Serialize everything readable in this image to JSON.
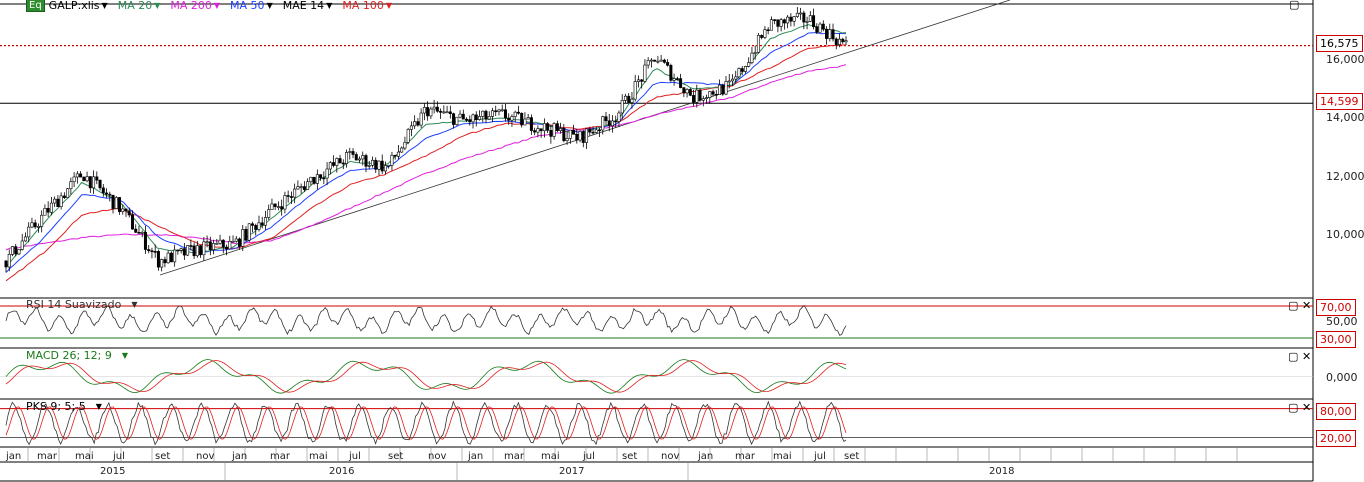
{
  "legend": {
    "eq": "Eq",
    "symbol": "GALP:xlis",
    "ma20": "MA 20",
    "ma200": "MA 200",
    "ma50": "MA 50",
    "mae14": "MAE 14",
    "ma100": "MA 100"
  },
  "indicators": {
    "rsi": "RSI 14 Suavizado",
    "macd": "MACD 26; 12; 9",
    "pks": "PKS 9; 5; 5"
  },
  "price_axis": {
    "ticks": [
      "16,000",
      "14,000",
      "12,000",
      "10,000"
    ],
    "current_price": "16,575",
    "support_level": "14,599"
  },
  "rsi_axis": {
    "upper": "70,00",
    "mid": "50,00",
    "lower": "30,00"
  },
  "macd_axis": {
    "zero": "0,000"
  },
  "pks_axis": {
    "upper": "80,00",
    "lower": "20,00"
  },
  "time_axis": {
    "months": [
      "jan",
      "mar",
      "mai",
      "jul",
      "set",
      "nov",
      "jan",
      "mar",
      "mai",
      "jul",
      "set",
      "nov",
      "jan",
      "mar",
      "mai",
      "jul",
      "set",
      "nov",
      "jan",
      "mar",
      "mai",
      "jul",
      "set"
    ],
    "years": [
      "2015",
      "2016",
      "2017",
      "2018"
    ]
  },
  "colors": {
    "ma20": "#2e8b57",
    "ma50": "#1e40ff",
    "ma100": "#e02020",
    "ma200": "#e020e0",
    "rsi": "#333333",
    "macd_line": "#1a7a1a",
    "macd_signal": "#e02020",
    "pks_k": "#333333",
    "pks_d": "#e02020",
    "current_price_line": "#d00000",
    "level_line": "#000000",
    "trendline": "#333333"
  },
  "chart_data": {
    "type": "line",
    "title": "GALP:xlis",
    "x": [
      "2015-01",
      "2015-03",
      "2015-05",
      "2015-07",
      "2015-09",
      "2015-11",
      "2016-01",
      "2016-03",
      "2016-05",
      "2016-07",
      "2016-09",
      "2016-11",
      "2017-01",
      "2017-03",
      "2017-05",
      "2017-07",
      "2017-09",
      "2017-11",
      "2018-01",
      "2018-03",
      "2018-05",
      "2018-07",
      "2018-08"
    ],
    "series": [
      {
        "name": "GALP:xlis",
        "values": [
          9.2,
          10.8,
          12.2,
          11.0,
          9.2,
          9.6,
          9.8,
          11.0,
          12.0,
          12.8,
          12.4,
          14.4,
          14.0,
          14.2,
          13.8,
          13.4,
          14.2,
          16.2,
          14.8,
          15.2,
          17.3,
          17.5,
          16.575
        ]
      },
      {
        "name": "MA 20",
        "values": [
          9.0,
          10.5,
          11.9,
          11.2,
          9.6,
          9.5,
          9.7,
          10.7,
          11.8,
          12.6,
          12.5,
          13.9,
          14.0,
          14.1,
          13.9,
          13.5,
          14.0,
          15.8,
          15.1,
          15.2,
          16.8,
          17.3,
          17.0
        ]
      },
      {
        "name": "MA 50",
        "values": [
          8.8,
          10.0,
          11.5,
          11.3,
          10.0,
          9.5,
          9.6,
          10.4,
          11.5,
          12.3,
          12.4,
          13.4,
          13.9,
          14.0,
          13.9,
          13.6,
          13.9,
          15.3,
          15.3,
          15.2,
          16.3,
          17.0,
          17.0
        ]
      },
      {
        "name": "MA 100",
        "values": [
          8.5,
          9.5,
          10.8,
          11.0,
          10.4,
          9.8,
          9.6,
          10.0,
          11.0,
          11.8,
          12.2,
          12.8,
          13.5,
          13.9,
          13.9,
          13.7,
          13.9,
          14.8,
          15.0,
          15.2,
          15.8,
          16.5,
          16.6
        ]
      },
      {
        "name": "MA 200",
        "values": [
          9.6,
          9.8,
          10.0,
          10.1,
          10.1,
          10.0,
          9.8,
          9.9,
          10.4,
          11.0,
          11.6,
          12.2,
          12.7,
          13.1,
          13.5,
          13.7,
          13.8,
          14.2,
          14.5,
          14.8,
          15.3,
          15.7,
          15.9
        ]
      }
    ],
    "ylim": [
      8,
      18
    ],
    "y_ticks": [
      10,
      12,
      14,
      16
    ],
    "current_price": 16.575,
    "support_level": 14.599,
    "rsi": {
      "name": "RSI 14 Suavizado",
      "upper": 70,
      "lower": 30,
      "ylim": [
        20,
        80
      ]
    },
    "pks": {
      "name": "PKS 9; 5; 5",
      "upper": 80,
      "lower": 20,
      "ylim": [
        0,
        100
      ]
    }
  }
}
